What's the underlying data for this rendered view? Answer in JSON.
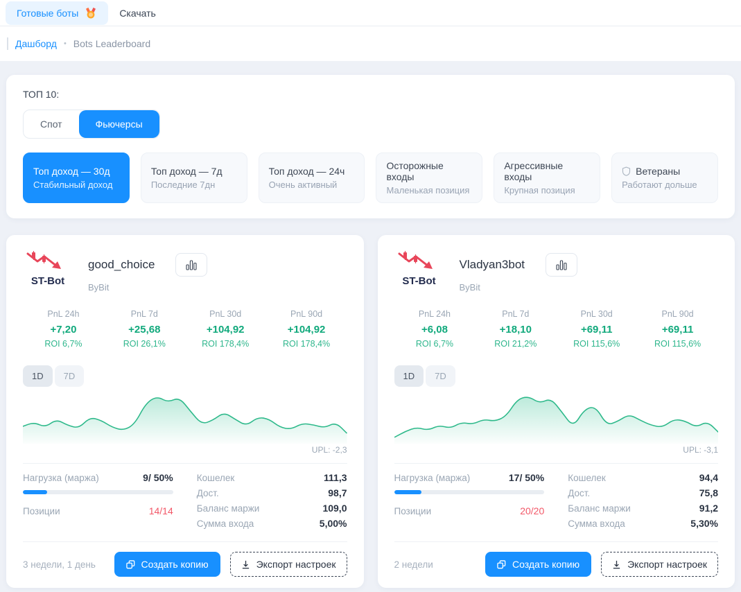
{
  "topbar": {
    "ready_bots": "Готовые боты",
    "download": "Скачать"
  },
  "breadcrumb": {
    "dashboard": "Дашборд",
    "separator": "•",
    "current": "Bots Leaderboard"
  },
  "filters": {
    "title": "ТОП 10:",
    "tabs": {
      "spot": "Спот",
      "futures": "Фьючерсы"
    },
    "presets": [
      {
        "title": "Топ доход — 30д",
        "subtitle": "Стабильный доход"
      },
      {
        "title": "Топ доход — 7д",
        "subtitle": "Последние 7дн"
      },
      {
        "title": "Топ доход — 24ч",
        "subtitle": "Очень активный"
      },
      {
        "title": "Осторожные входы",
        "subtitle": "Маленькая позиция"
      },
      {
        "title": "Агрессивные входы",
        "subtitle": "Крупная позиция"
      },
      {
        "title": "Ветераны",
        "subtitle": "Работают дольше"
      }
    ]
  },
  "range_toggle": {
    "d1": "1D",
    "d7": "7D"
  },
  "card_actions": {
    "copy": "Создать копию",
    "export": "Экспорт настроек"
  },
  "colors": {
    "accent": "#1890ff",
    "green": "#11a97c",
    "red": "#f25767"
  },
  "bots": [
    {
      "logo_text": "ST-Bot",
      "name": "good_choice",
      "exchange": "ByBit",
      "pnl": [
        {
          "label": "PnL 24h",
          "value": "+7,20",
          "roi": "ROI 6,7%"
        },
        {
          "label": "PnL 7d",
          "value": "+25,68",
          "roi": "ROI 26,1%"
        },
        {
          "label": "PnL 30d",
          "value": "+104,92",
          "roi": "ROI 178,4%"
        },
        {
          "label": "PnL 90d",
          "value": "+104,92",
          "roi": "ROI 178,4%"
        }
      ],
      "upl": "UPL: -2,3",
      "load": {
        "label": "Нагрузка (маржа)",
        "value": "9/ 50%",
        "fill_percent": 16
      },
      "positions": {
        "label": "Позиции",
        "value": "14/14"
      },
      "wallet_stats": [
        {
          "label": "Кошелек",
          "value": "111,3"
        },
        {
          "label": "Дост.",
          "value": "98,7"
        },
        {
          "label": "Баланс маржи",
          "value": "109,0"
        },
        {
          "label": "Сумма входа",
          "value": "5,00%"
        }
      ],
      "age": "3 недели, 1 день",
      "chart": {
        "type": "area",
        "values": [
          32,
          40,
          30,
          46,
          34,
          28,
          50,
          44,
          30,
          24,
          36,
          78,
          92,
          80,
          90,
          62,
          36,
          44,
          60,
          46,
          33,
          50,
          47,
          30,
          26,
          38,
          35,
          29,
          40,
          18
        ]
      }
    },
    {
      "logo_text": "ST-Bot",
      "name": "Vladyan3bot",
      "exchange": "ByBit",
      "pnl": [
        {
          "label": "PnL 24h",
          "value": "+6,08",
          "roi": "ROI 6,7%"
        },
        {
          "label": "PnL 7d",
          "value": "+18,10",
          "roi": "ROI 21,2%"
        },
        {
          "label": "PnL 30d",
          "value": "+69,11",
          "roi": "ROI 115,6%"
        },
        {
          "label": "PnL 90d",
          "value": "+69,11",
          "roi": "ROI 115,6%"
        }
      ],
      "upl": "UPL: -3,1",
      "load": {
        "label": "Нагрузка (маржа)",
        "value": "17/ 50%",
        "fill_percent": 18
      },
      "positions": {
        "label": "Позиции",
        "value": "20/20"
      },
      "wallet_stats": [
        {
          "label": "Кошелек",
          "value": "94,4"
        },
        {
          "label": "Дост.",
          "value": "75,8"
        },
        {
          "label": "Баланс маржи",
          "value": "91,2"
        },
        {
          "label": "Сумма входа",
          "value": "5,30%"
        }
      ],
      "age": "2 недели",
      "chart": {
        "type": "area",
        "values": [
          10,
          22,
          30,
          24,
          34,
          28,
          40,
          36,
          46,
          42,
          52,
          86,
          92,
          78,
          88,
          60,
          30,
          66,
          72,
          34,
          42,
          56,
          44,
          34,
          30,
          46,
          43,
          30,
          42,
          20
        ]
      }
    }
  ]
}
